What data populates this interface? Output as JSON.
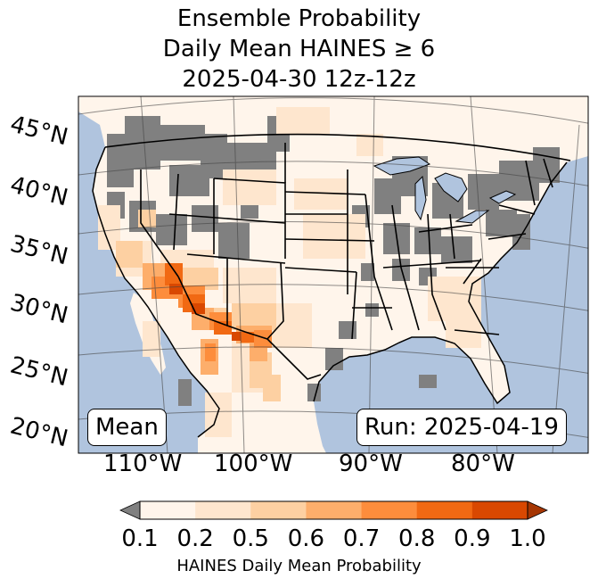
{
  "title": {
    "line1": "Ensemble Probability",
    "line2": "Daily Mean HAINES ≥ 6",
    "line3": "2025-04-30 12z-12z"
  },
  "map": {
    "latitude_labels": [
      "45°N",
      "40°N",
      "35°N",
      "30°N",
      "25°N",
      "20°N"
    ],
    "longitude_labels": [
      "110°W",
      "100°W",
      "90°W",
      "80°W"
    ],
    "ocean_color": "#b0c4de",
    "missing_color": "#808080"
  },
  "annotations": {
    "left_box": "Mean",
    "right_box": "Run: 2025-04-19"
  },
  "colorbar": {
    "ticks": [
      "0.1",
      "0.2",
      "0.5",
      "0.6",
      "0.7",
      "0.8",
      "0.9",
      "1.0"
    ],
    "colors": [
      "#fff5eb",
      "#fee6ce",
      "#fdd0a2",
      "#fdae6b",
      "#fd8d3c",
      "#f16913",
      "#d94801",
      "#a63603"
    ],
    "under_color": "#808080",
    "label": "HAINES Daily Mean Probability"
  }
}
